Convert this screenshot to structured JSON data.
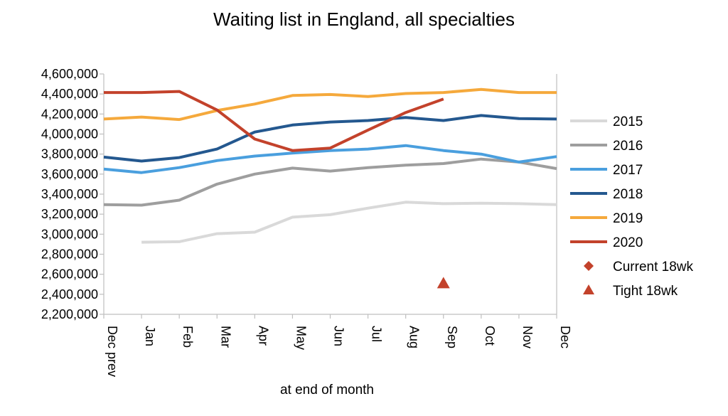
{
  "chart_data": {
    "type": "line",
    "title": "Waiting list in England, all specialties",
    "xlabel": "at end of month",
    "ylabel": "",
    "categories": [
      "Dec prev",
      "Jan",
      "Feb",
      "Mar",
      "Apr",
      "May",
      "Jun",
      "Jul",
      "Aug",
      "Sep",
      "Oct",
      "Nov",
      "Dec"
    ],
    "ylim": [
      2200000,
      4600000
    ],
    "yticks": [
      2200000,
      2400000,
      2600000,
      2800000,
      3000000,
      3200000,
      3400000,
      3600000,
      3800000,
      4000000,
      4200000,
      4400000,
      4600000
    ],
    "ytick_labels": [
      "2,200,000",
      "2,400,000",
      "2,600,000",
      "2,800,000",
      "3,000,000",
      "3,200,000",
      "3,400,000",
      "3,600,000",
      "3,800,000",
      "4,000,000",
      "4,200,000",
      "4,400,000",
      "4,600,000"
    ],
    "grid": false,
    "legend_position": "right",
    "series": [
      {
        "name": "2015",
        "color": "#d9d9d9",
        "values": [
          null,
          2920000,
          2925000,
          3005000,
          3020000,
          3170000,
          3195000,
          3260000,
          3320000,
          3305000,
          3310000,
          3305000,
          3295000
        ]
      },
      {
        "name": "2016",
        "color": "#9e9e9e",
        "values": [
          3295000,
          3290000,
          3340000,
          3500000,
          3600000,
          3660000,
          3630000,
          3665000,
          3690000,
          3705000,
          3750000,
          3720000,
          3655000
        ]
      },
      {
        "name": "2017",
        "color": "#4a9fde",
        "values": [
          3650000,
          3615000,
          3665000,
          3735000,
          3780000,
          3810000,
          3835000,
          3850000,
          3885000,
          3835000,
          3800000,
          3720000,
          3775000
        ]
      },
      {
        "name": "2018",
        "color": "#24588f",
        "values": [
          3770000,
          3730000,
          3765000,
          3850000,
          4020000,
          4090000,
          4120000,
          4135000,
          4165000,
          4135000,
          4185000,
          4155000,
          4150000
        ]
      },
      {
        "name": "2019",
        "color": "#f5a93c",
        "values": [
          4150000,
          4170000,
          4145000,
          4235000,
          4300000,
          4385000,
          4395000,
          4375000,
          4405000,
          4415000,
          4445000,
          4415000,
          4415000
        ]
      },
      {
        "name": "2020",
        "color": "#c3422b",
        "values": [
          4415000,
          4415000,
          4425000,
          4240000,
          3950000,
          3835000,
          3860000,
          4040000,
          4215000,
          4350000,
          null,
          null,
          null
        ]
      }
    ],
    "markers": [
      {
        "name": "Current 18wk",
        "shape": "diamond",
        "color": "#c3422b",
        "points": []
      },
      {
        "name": "Tight 18wk",
        "shape": "triangle",
        "color": "#c3422b",
        "points": [
          {
            "category": "Sep",
            "value": 2510000
          }
        ]
      }
    ]
  }
}
